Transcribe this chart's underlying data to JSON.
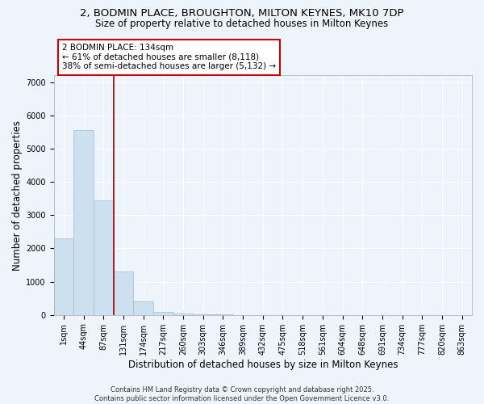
{
  "title_line1": "2, BODMIN PLACE, BROUGHTON, MILTON KEYNES, MK10 7DP",
  "title_line2": "Size of property relative to detached houses in Milton Keynes",
  "categories": [
    "1sqm",
    "44sqm",
    "87sqm",
    "131sqm",
    "174sqm",
    "217sqm",
    "260sqm",
    "303sqm",
    "346sqm",
    "389sqm",
    "432sqm",
    "475sqm",
    "518sqm",
    "561sqm",
    "604sqm",
    "648sqm",
    "691sqm",
    "734sqm",
    "777sqm",
    "820sqm",
    "863sqm"
  ],
  "values": [
    2300,
    5550,
    3450,
    1300,
    400,
    80,
    30,
    15,
    8,
    5,
    3,
    2,
    1,
    1,
    0,
    0,
    0,
    0,
    0,
    0,
    0
  ],
  "bar_color": "#cce0f0",
  "bar_edge_color": "#a0bcd8",
  "vline_x_index": 2,
  "vline_color": "#990000",
  "annotation_text": "2 BODMIN PLACE: 134sqm\n← 61% of detached houses are smaller (8,118)\n38% of semi-detached houses are larger (5,132) →",
  "annotation_box_color": "#ffffff",
  "annotation_box_edge": "#cc0000",
  "ylabel": "Number of detached properties",
  "xlabel": "Distribution of detached houses by size in Milton Keynes",
  "ylim": [
    0,
    7200
  ],
  "yticks": [
    0,
    1000,
    2000,
    3000,
    4000,
    5000,
    6000,
    7000
  ],
  "footer_line1": "Contains HM Land Registry data © Crown copyright and database right 2025.",
  "footer_line2": "Contains public sector information licensed under the Open Government Licence v3.0.",
  "bg_color": "#eef4fb",
  "grid_color": "#ffffff",
  "title_fontsize": 9.5,
  "axis_label_fontsize": 8.5,
  "tick_fontsize": 7,
  "annotation_fontsize": 7.5,
  "footer_fontsize": 6
}
